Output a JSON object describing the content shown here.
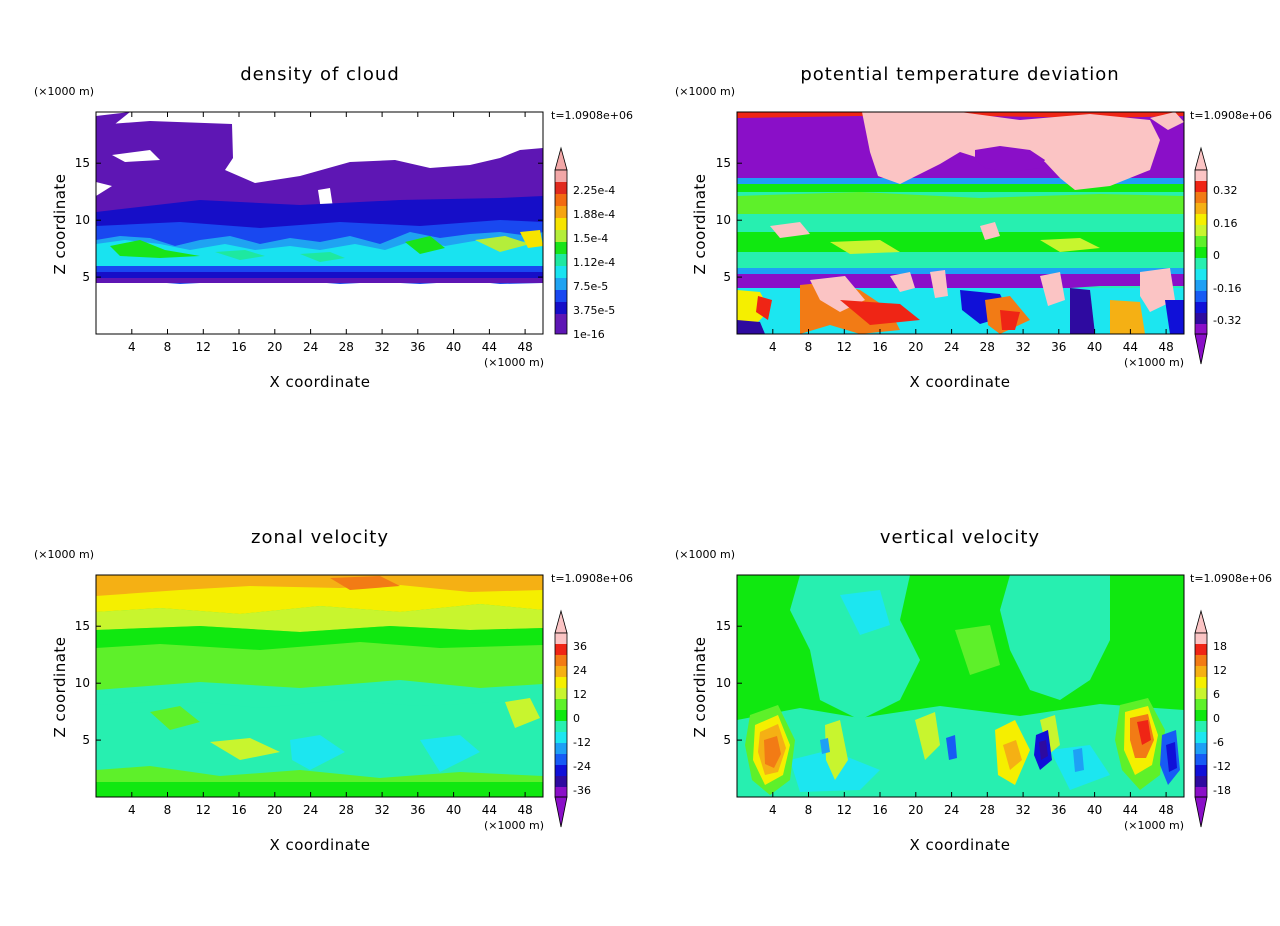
{
  "colors": {
    "cloud": [
      "#f2a7a7",
      "#e02a1e",
      "#f26a12",
      "#f5a411",
      "#f6e400",
      "#b4ee3a",
      "#19e419",
      "#1ee8a0",
      "#19e3f0",
      "#1fa3f2",
      "#1948f0",
      "#160ec8",
      "#5e16b4"
    ],
    "diverging": [
      "#fbc4c4",
      "#ef2515",
      "#f27b15",
      "#f5b014",
      "#f5ef00",
      "#c8f52e",
      "#5ef02a",
      "#10e810",
      "#27efb0",
      "#1ce6f0",
      "#1ea0f5",
      "#175bf5",
      "#1010d8",
      "#2e0aa0",
      "#8a0fc8"
    ]
  },
  "chart_data": [
    {
      "type": "heatmap",
      "title": "density of cloud",
      "xlabel": "X coordinate",
      "ylabel": "Z coordinate",
      "x_unit": "(×1000 m)",
      "y_unit": "(×1000 m)",
      "time_label": "t=1.0908e+06",
      "xlim": [
        0,
        50
      ],
      "ylim": [
        0,
        19.5
      ],
      "x_ticks": [
        "4",
        "8",
        "12",
        "16",
        "20",
        "24",
        "28",
        "32",
        "36",
        "40",
        "44",
        "48"
      ],
      "y_ticks": [
        "5",
        "10",
        "15"
      ],
      "colorbar_labels": [
        "2.25e-4",
        "1.88e-4",
        "1.5e-4",
        "1.12e-4",
        "7.5e-5",
        "3.75e-5",
        "1e-16"
      ],
      "field_summary": "cloud layer between z≈5 and z≈19.5; highest densities (green/cyan) near z≈6–8 with wavy top, sparse clear gaps above z≈13 around x≈15–30"
    },
    {
      "type": "heatmap",
      "title": "potential temperature deviation",
      "xlabel": "X coordinate",
      "ylabel": "Z coordinate",
      "x_unit": "(×1000 m)",
      "y_unit": "(×1000 m)",
      "time_label": "t=1.0908e+06",
      "xlim": [
        0,
        50
      ],
      "ylim": [
        0,
        19.5
      ],
      "x_ticks": [
        "4",
        "8",
        "12",
        "16",
        "20",
        "24",
        "28",
        "32",
        "36",
        "40",
        "44",
        "48"
      ],
      "y_ticks": [
        "5",
        "10",
        "15"
      ],
      "colorbar_labels": [
        "0.32",
        "0.16",
        "0",
        "-0.16",
        "-0.32"
      ],
      "field_summary": "strong negative (purple) layers at z≈13.5–19.5 and z≈4.5–5.5; warm (pink) patches near top between x≈15 and x≈46; mixed warm/cold cells below z≈4"
    },
    {
      "type": "heatmap",
      "title": "zonal velocity",
      "xlabel": "X coordinate",
      "ylabel": "Z coordinate",
      "x_unit": "(×1000 m)",
      "y_unit": "(×1000 m)",
      "time_label": "t=1.0908e+06",
      "xlim": [
        0,
        50
      ],
      "ylim": [
        0,
        19.5
      ],
      "x_ticks": [
        "4",
        "8",
        "12",
        "16",
        "20",
        "24",
        "28",
        "32",
        "36",
        "40",
        "44",
        "48"
      ],
      "y_ticks": [
        "5",
        "10",
        "15"
      ],
      "colorbar_labels": [
        "36",
        "24",
        "12",
        "0",
        "-12",
        "-24",
        "-36"
      ],
      "field_summary": "positive (yellow/orange) near top z≈16–19.5, decreasing through green to cyan (slightly negative) below z≈8"
    },
    {
      "type": "heatmap",
      "title": "vertical velocity",
      "xlabel": "X coordinate",
      "ylabel": "Z coordinate",
      "x_unit": "(×1000 m)",
      "y_unit": "(×1000 m)",
      "time_label": "t=1.0908e+06",
      "xlim": [
        0,
        50
      ],
      "ylim": [
        0,
        19.5
      ],
      "x_ticks": [
        "4",
        "8",
        "12",
        "16",
        "20",
        "24",
        "28",
        "32",
        "36",
        "40",
        "44",
        "48"
      ],
      "y_ticks": [
        "5",
        "10",
        "15"
      ],
      "colorbar_labels": [
        "18",
        "12",
        "6",
        "0",
        "-6",
        "-12",
        "-18"
      ],
      "field_summary": "mostly near zero (green/cyan); strong updraft cores (orange/red) near x≈4 and x≈45 below z≈7; downdrafts (blue) near x≈34 and x≈48"
    }
  ]
}
